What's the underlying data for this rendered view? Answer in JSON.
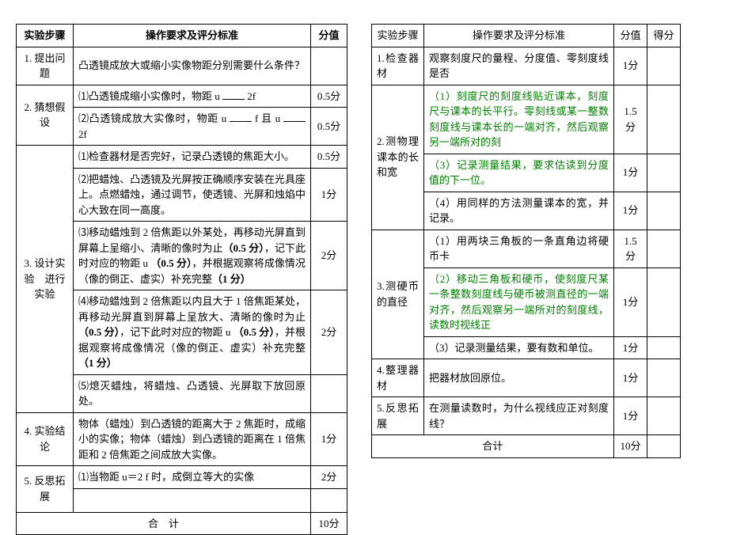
{
  "left": {
    "headers": {
      "step": "实验步骤",
      "req": "操作要求及评分标准",
      "score": "分值"
    },
    "total_label": "合　计",
    "total_score": "10分",
    "rows": [
      {
        "step": "1. 提出问题",
        "items": [
          {
            "req": "凸透镜成放大或缩小实像物距分别需要什么条件？",
            "score": ""
          }
        ]
      },
      {
        "step": "2. 猜想假设",
        "items": [
          {
            "req_parts": [
              "⑴凸透镜成缩小实像时，物距 u",
              "blank",
              "2f"
            ],
            "score": "0.5分"
          },
          {
            "req_parts": [
              "⑵凸透镜成放大实像时，物距 u",
              "blank",
              " f 且 u",
              "blank",
              "2f"
            ],
            "score": "0.5分"
          }
        ]
      },
      {
        "step": "3. 设计实验　进行实验",
        "items": [
          {
            "req": "⑴检查器材是否完好，记录凸透镜的焦距大小。",
            "score": "0.5分"
          },
          {
            "req": "⑵把蜡烛、凸透镜及光屏按正确顺序安装在光具座上。点燃蜡烛，通过调节，使透镜、光屏和烛焰中心大致在同一高度。",
            "score": "1分"
          },
          {
            "req_parts": [
              "⑶移动蜡烛到 2 倍焦距以外某处，再移动光屏直到屏幕上呈缩小、清晰的像时为止（0.5 分），记下此时对应的物距 u （0.5 分），并根据观察将成像情况（像的倒正、虚实）补充完整（1 分）"
            ],
            "bold_bracket": true,
            "score": "2分"
          },
          {
            "req_parts": [
              "⑷移动蜡烛到 2 倍焦距以内且大于 1 倍焦距某处，再移动光屏直到屏幕上呈放大、清晰的像时为止（0.5 分），记下此时对应的物距 u （0.5 分），并根据观察将成像情况（像的倒正、虚实）补充完整（1 分）"
            ],
            "bold_bracket": true,
            "score": "2分"
          },
          {
            "req": "⑸熄灭蜡烛，将蜡烛、凸透镜、光屏取下放回原处。",
            "score": ""
          }
        ]
      },
      {
        "step": "4. 实验结论",
        "items": [
          {
            "req": "物体（蜡烛）到凸透镜的距离大于 2 焦距时，成缩小的实像；物体（蜡烛）到凸透镜的距离在 1 倍焦距和 2 倍焦距之间成放大实像。",
            "score": "1分"
          }
        ]
      },
      {
        "step": "5. 反思拓展",
        "items": [
          {
            "req": "⑴当物距 u＝2 f 时，成倒立等大的实像",
            "score": "2分"
          }
        ]
      }
    ]
  },
  "right": {
    "headers": {
      "step": "实验步骤",
      "req": "操作要求及评分标准",
      "score": "分值",
      "get": "得分"
    },
    "total_label": "合计",
    "total_score": "10分",
    "rows": [
      {
        "step": "1.检查器材",
        "items": [
          {
            "req": "观察刻度尺的量程、分度值、零刻度线是否",
            "score": "1分",
            "green": false
          }
        ]
      },
      {
        "step": "2.测物理课本的长和宽",
        "items": [
          {
            "req": "（1）刻度尺的刻度线贴近课本，刻度尺与课本的长平行。零刻线或某一整数刻度线与课本长的一端对齐，然后观察另一端所对的刻",
            "score": "1.5分",
            "green": true
          },
          {
            "req": "（3）记录测量结果，要求估读到分度值的下一位。",
            "score": "1分",
            "green": true
          },
          {
            "req": "（4）用同样的方法测量课本的宽，并记录。",
            "score": "1分",
            "green": false
          }
        ]
      },
      {
        "step": "3.测硬币的直径",
        "items": [
          {
            "req": "（1）用两块三角板的一条直角边将硬币卡",
            "score": "1.5分",
            "green": false
          },
          {
            "req": "（2）移动三角板和硬币，使刻度尺某一条整数刻度线与硬币被测直径的一端对齐，然后观察另一端所对的刻度线，读数时视线正",
            "score": "1分",
            "green": true
          },
          {
            "req": "（3）记录测量结果，要有数和单位。",
            "score": "1分",
            "green": false
          }
        ]
      },
      {
        "step": "4.整理器材",
        "items": [
          {
            "req": "把器材放回原位。",
            "score": "1分",
            "green": false
          }
        ]
      },
      {
        "step": "5.反思拓展",
        "items": [
          {
            "req": "在测量读数时，为什么视线应正对刻度线？",
            "score": "1分",
            "green": false
          }
        ]
      }
    ]
  }
}
